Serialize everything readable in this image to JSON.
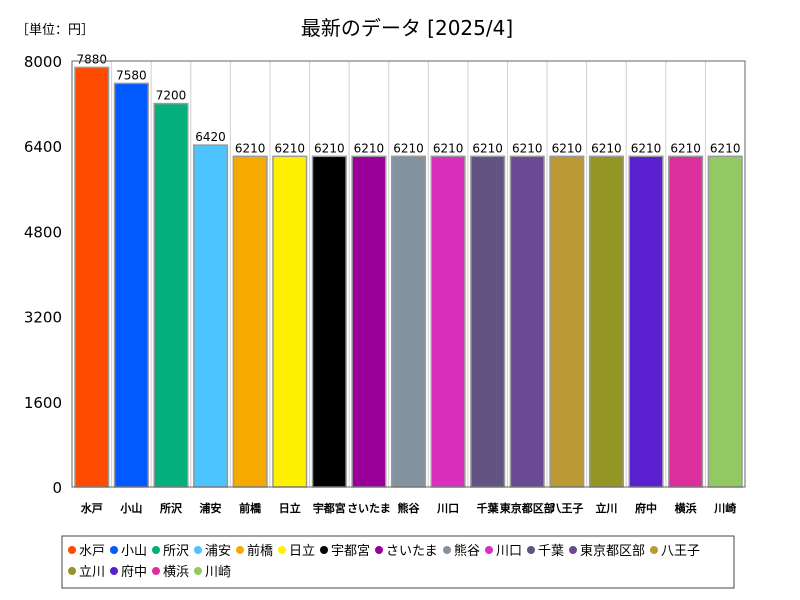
{
  "chart_data": {
    "type": "bar",
    "title": "最新のデータ [2025/4]",
    "unit_label": "［単位：円］",
    "xlabel": "",
    "ylabel": "",
    "ylim": [
      0,
      8000
    ],
    "yticks": [
      0,
      1600,
      3200,
      4800,
      6400,
      8000
    ],
    "categories": [
      "水戸",
      "小山",
      "所沢",
      "浦安",
      "前橋",
      "日立",
      "宇都宮",
      "さいたま",
      "熊谷",
      "川口",
      "千葉",
      "東京都区部",
      "八王子",
      "立川",
      "府中",
      "横浜",
      "川崎"
    ],
    "values": [
      7880,
      7580,
      7200,
      6420,
      6210,
      6210,
      6210,
      6210,
      6210,
      6210,
      6210,
      6210,
      6210,
      6210,
      6210,
      6210,
      6210
    ],
    "colors": [
      "#ff4b00",
      "#005aff",
      "#03af7a",
      "#4dc4ff",
      "#f6aa00",
      "#fff100",
      "#000000",
      "#990099",
      "#84919e",
      "#d92fbd",
      "#625382",
      "#6a4a93",
      "#bb9934",
      "#939624",
      "#5a1fcf",
      "#da2f9c",
      "#93c963"
    ],
    "legend_position": "bottom",
    "grid": "vertical"
  }
}
